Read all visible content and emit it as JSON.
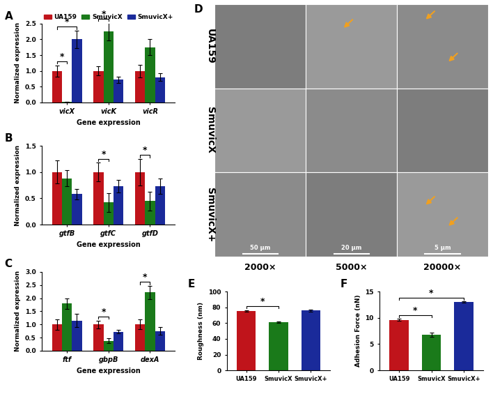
{
  "chart_data": [
    {
      "panel": "A",
      "type": "bar",
      "categories": [
        "vicX",
        "vicK",
        "vicR"
      ],
      "x_label": "Gene expression",
      "y_label": "Normalized expression",
      "ylim": [
        0,
        2.5
      ],
      "yticks": [
        {
          "value": 0,
          "label": "0.0"
        },
        {
          "value": 0.5,
          "label": "0.5"
        },
        {
          "value": 1.0,
          "label": "1.0"
        },
        {
          "value": 1.5,
          "label": "1.5"
        },
        {
          "value": 2.0,
          "label": "2.0"
        },
        {
          "value": 2.5,
          "label": "2.5"
        }
      ],
      "legend": "top",
      "series": [
        {
          "name": "UA159",
          "color": "#c0141b",
          "values": [
            1.0,
            1.0,
            1.0
          ],
          "errors": [
            0.18,
            0.15,
            0.2
          ]
        },
        {
          "name": "SmuvicX",
          "color": "#1a7a1a",
          "values": [
            0.02,
            2.25,
            1.75
          ],
          "errors": [
            0.0,
            0.28,
            0.25
          ]
        },
        {
          "name": "SmuvicX+",
          "color": "#1a2a9a",
          "values": [
            2.0,
            0.72,
            0.8
          ],
          "errors": [
            0.28,
            0.1,
            0.12
          ]
        }
      ],
      "significance": [
        {
          "category": "vicX",
          "pair": [
            "UA159",
            "SmuvicX"
          ],
          "label": "*"
        },
        {
          "category": "vicX",
          "pair": [
            "UA159",
            "SmuvicX+"
          ],
          "label": "*"
        },
        {
          "category": "vicK",
          "pair": [
            "UA159",
            "SmuvicX"
          ],
          "label": "*"
        }
      ]
    },
    {
      "panel": "B",
      "type": "bar",
      "categories": [
        "gtfB",
        "gtfC",
        "gtfD"
      ],
      "x_label": "Gene expression",
      "y_label": "Normalized expression",
      "ylim": [
        0,
        1.5
      ],
      "yticks": [
        {
          "value": 0,
          "label": "0.0"
        },
        {
          "value": 0.5,
          "label": "0.5"
        },
        {
          "value": 1.0,
          "label": "1.0"
        },
        {
          "value": 1.5,
          "label": "1.5"
        }
      ],
      "series": [
        {
          "name": "UA159",
          "color": "#c0141b",
          "values": [
            1.0,
            1.0,
            1.0
          ],
          "errors": [
            0.22,
            0.18,
            0.25
          ]
        },
        {
          "name": "SmuvicX",
          "color": "#1a7a1a",
          "values": [
            0.88,
            0.42,
            0.45
          ],
          "errors": [
            0.15,
            0.18,
            0.18
          ]
        },
        {
          "name": "SmuvicX+",
          "color": "#1a2a9a",
          "values": [
            0.58,
            0.73,
            0.73
          ],
          "errors": [
            0.1,
            0.12,
            0.15
          ]
        }
      ],
      "significance": [
        {
          "category": "gtfC",
          "pair": [
            "UA159",
            "SmuvicX"
          ],
          "label": "*"
        },
        {
          "category": "gtfD",
          "pair": [
            "UA159",
            "SmuvicX"
          ],
          "label": "*"
        }
      ]
    },
    {
      "panel": "C",
      "type": "bar",
      "categories": [
        "ftf",
        "gbpB",
        "dexA"
      ],
      "x_label": "Gene expression",
      "y_label": "Normalized expression",
      "ylim": [
        0,
        3.0
      ],
      "yticks": [
        {
          "value": 0,
          "label": "0.0"
        },
        {
          "value": 0.5,
          "label": "0.5"
        },
        {
          "value": 1.0,
          "label": "1.0"
        },
        {
          "value": 1.5,
          "label": "1.5"
        },
        {
          "value": 2.0,
          "label": "2.0"
        },
        {
          "value": 2.5,
          "label": "2.5"
        },
        {
          "value": 3.0,
          "label": "3.0"
        }
      ],
      "series": [
        {
          "name": "UA159",
          "color": "#c0141b",
          "values": [
            1.0,
            1.0,
            1.0
          ],
          "errors": [
            0.2,
            0.15,
            0.18
          ]
        },
        {
          "name": "SmuvicX",
          "color": "#1a7a1a",
          "values": [
            1.8,
            0.38,
            2.22
          ],
          "errors": [
            0.2,
            0.1,
            0.25
          ]
        },
        {
          "name": "SmuvicX+",
          "color": "#1a2a9a",
          "values": [
            1.15,
            0.72,
            0.75
          ],
          "errors": [
            0.25,
            0.06,
            0.15
          ]
        }
      ],
      "significance": [
        {
          "category": "gbpB",
          "pair": [
            "UA159",
            "SmuvicX"
          ],
          "label": "*"
        },
        {
          "category": "dexA",
          "pair": [
            "UA159",
            "SmuvicX"
          ],
          "label": "*"
        }
      ]
    },
    {
      "panel": "E",
      "type": "bar",
      "categories": [
        "UA159",
        "SmuvicX",
        "SmuvicX+"
      ],
      "y_label": "Roughness (nm)",
      "ylim": [
        0,
        100
      ],
      "yticks": [
        0,
        20,
        40,
        60,
        80,
        100
      ],
      "values": [
        75.5,
        61.0,
        75.8
      ],
      "errors": [
        1.0,
        1.0,
        1.2
      ],
      "colors": [
        "#c0141b",
        "#1a7a1a",
        "#1a2a9a"
      ],
      "significance": [
        {
          "pair": [
            "UA159",
            "SmuvicX"
          ],
          "label": "*"
        }
      ]
    },
    {
      "panel": "F",
      "type": "bar",
      "categories": [
        "UA159",
        "SmuvicX",
        "SmuvicX+"
      ],
      "y_label": "Adhesion Force (nN)",
      "ylim": [
        0,
        15
      ],
      "yticks": [
        0,
        5,
        10,
        15
      ],
      "values": [
        9.6,
        6.8,
        13.0
      ],
      "errors": [
        0.2,
        0.4,
        0.1
      ],
      "colors": [
        "#c0141b",
        "#1a7a1a",
        "#1a2a9a"
      ],
      "significance": [
        {
          "pair": [
            "UA159",
            "SmuvicX"
          ],
          "label": "*"
        },
        {
          "pair": [
            "UA159",
            "SmuvicX+"
          ],
          "label": "*"
        }
      ]
    }
  ],
  "image_panel": {
    "panel": "D",
    "row_labels": [
      "UA159",
      "SmuvicX",
      "SmuvicX+"
    ],
    "column_labels": [
      "2000×",
      "5000×",
      "20000×"
    ],
    "scale_bars": [
      "50 μm",
      "20 μm",
      "5 μm"
    ]
  }
}
